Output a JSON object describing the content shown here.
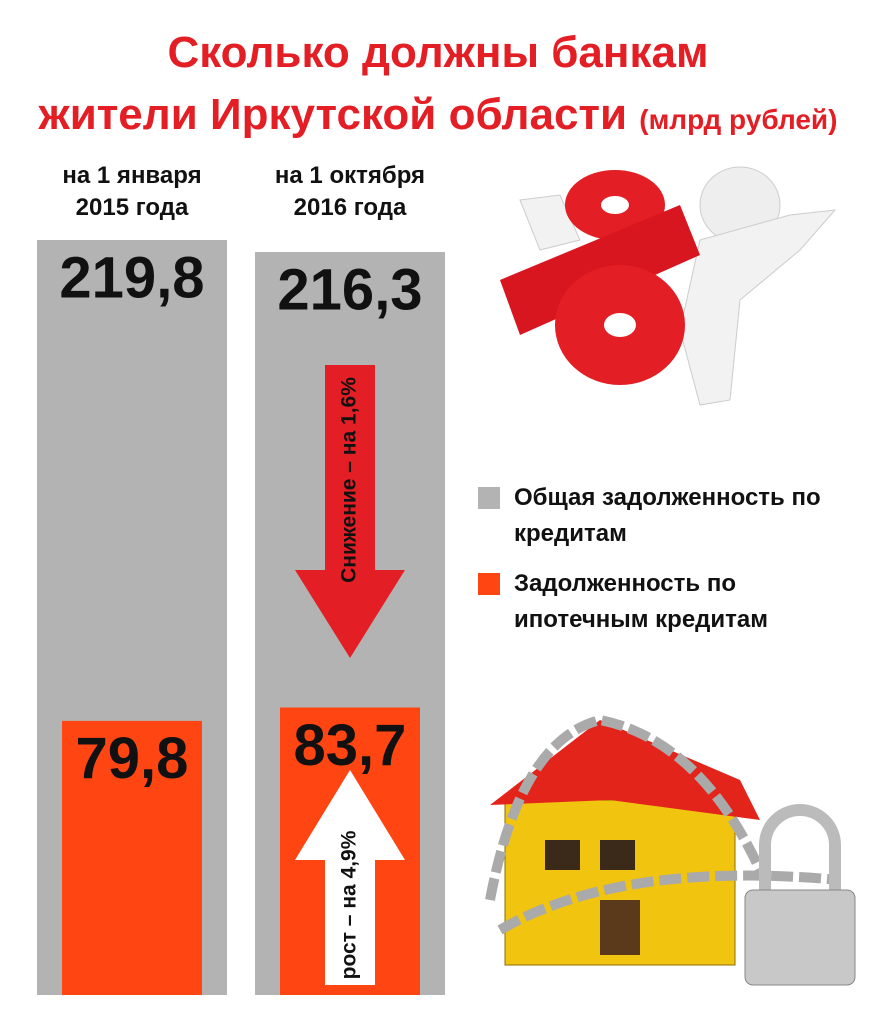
{
  "chart_data": {
    "type": "bar",
    "title_lines": [
      "Сколько должны банкам",
      "жители Иркутской области"
    ],
    "units": "(млрд рублей)",
    "categories": [
      "на 1 января 2015 года",
      "на 1 октября 2016 года"
    ],
    "series": [
      {
        "name": "Общая задолженность по кредитам",
        "color": "#b3b3b3",
        "values": [
          219.8,
          216.3
        ],
        "value_labels": [
          "219,8",
          "216,3"
        ]
      },
      {
        "name": "Задолженность по ипотечным кредитам",
        "color": "#ff4612",
        "values": [
          79.8,
          83.7
        ],
        "value_labels": [
          "79,8",
          "83,7"
        ]
      }
    ],
    "annotations": [
      "Снижение – на 1,6%",
      "рост – на 4,9%"
    ]
  }
}
